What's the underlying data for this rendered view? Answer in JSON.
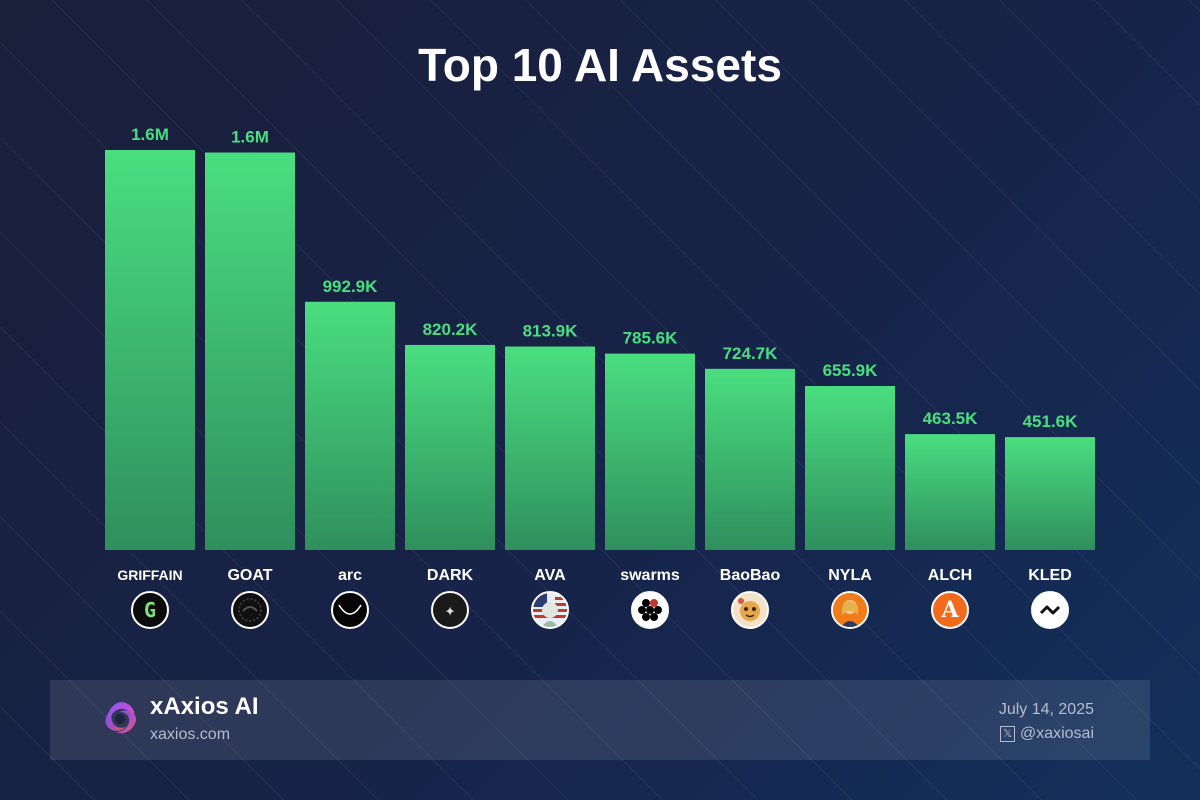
{
  "chart_data": {
    "type": "bar",
    "title": "Top 10 AI Assets",
    "categories": [
      "GRIFFAIN",
      "GOAT",
      "arc",
      "DARK",
      "AVA",
      "swarms",
      "BaoBao",
      "NYLA",
      "ALCH",
      "KLED"
    ],
    "values": [
      1600000,
      1590000,
      992900,
      820200,
      813900,
      785600,
      724700,
      655900,
      463500,
      451600
    ],
    "data_labels": [
      "1.6M",
      "1.6M",
      "992.9K",
      "820.2K",
      "813.9K",
      "785.6K",
      "724.7K",
      "655.9K",
      "463.5K",
      "451.6K"
    ],
    "xlabel": "",
    "ylabel": "",
    "ylim": [
      0,
      1600000
    ],
    "grid": false,
    "legend": "none",
    "colors": {
      "bar_top": "#4ade80",
      "bar_bottom": "#2f8f5d",
      "value_text": "#4ade80"
    }
  },
  "icons": [
    {
      "name": "griffain-icon",
      "glyph": "G",
      "bg": "#0b0b0b",
      "fg": "#7ee07e"
    },
    {
      "name": "goat-icon",
      "glyph": "",
      "bg": "#101010",
      "fg": "#444444"
    },
    {
      "name": "arc-icon",
      "glyph": "",
      "bg": "#050505",
      "fg": "#ffffff"
    },
    {
      "name": "dark-icon",
      "glyph": "✦",
      "bg": "#1a1a1a",
      "fg": "#dddddd"
    },
    {
      "name": "ava-icon",
      "glyph": "",
      "bg": "#e9eef5",
      "fg": "#c0392b"
    },
    {
      "name": "swarms-icon",
      "glyph": "",
      "bg": "#ffffff",
      "fg": "#000000"
    },
    {
      "name": "baobao-icon",
      "glyph": "",
      "bg": "#f4e2c8",
      "fg": "#e08a1e"
    },
    {
      "name": "nyla-icon",
      "glyph": "",
      "bg": "#f07c1a",
      "fg": "#2b3a67"
    },
    {
      "name": "alch-icon",
      "glyph": "A",
      "bg": "#f26b1d",
      "fg": "#ffffff"
    },
    {
      "name": "kled-icon",
      "glyph": "",
      "bg": "#ffffff",
      "fg": "#111111"
    }
  ],
  "footer": {
    "brand_name": "xAxios AI",
    "brand_url": "xaxios.com",
    "date": "July 14, 2025",
    "handle": "@xaxiosai",
    "handle_icon": "𝕏"
  }
}
